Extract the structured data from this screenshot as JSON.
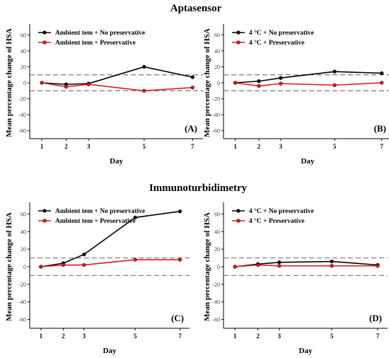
{
  "titles": [
    "Aptasensor",
    "Immunoturbidimetry"
  ],
  "colors": {
    "no_preservative": "#000000",
    "preservative": "#dd1a1a",
    "reference_line": "#777777"
  },
  "chart_data": [
    {
      "type": "line",
      "panel": "(A)",
      "xlabel": "Day",
      "ylabel": "Mean percentage change of HSA",
      "x": [
        1,
        2,
        3,
        5,
        7
      ],
      "xticks": [
        "1",
        "2",
        "3",
        "5",
        "7"
      ],
      "ylim": [
        -70,
        70
      ],
      "yticks": [
        "60",
        "40",
        "20",
        "0",
        "-20",
        "-40",
        "-60"
      ],
      "reference_lines": [
        10,
        -10
      ],
      "legend_position": "top-left",
      "series": [
        {
          "name": "Ambient tem + No preservative",
          "values": [
            0,
            -2,
            -1,
            20,
            7
          ]
        },
        {
          "name": "Ambient tem + Preservative",
          "values": [
            0,
            -5,
            -2,
            -10,
            -6
          ]
        }
      ]
    },
    {
      "type": "line",
      "panel": "(B)",
      "xlabel": "Day",
      "ylabel": "Mean percentage change of HSA",
      "x": [
        1,
        2,
        3,
        5,
        7
      ],
      "xticks": [
        "1",
        "2",
        "3",
        "5",
        "7"
      ],
      "ylim": [
        -70,
        70
      ],
      "yticks": [
        "60",
        "40",
        "20",
        "0",
        "-20",
        "-40",
        "-60"
      ],
      "reference_lines": [
        10,
        -10
      ],
      "legend_position": "top-left",
      "series": [
        {
          "name": "4 °C + No preservative",
          "values": [
            0,
            2,
            6,
            14,
            12
          ]
        },
        {
          "name": "4 °C + Preservative",
          "values": [
            0,
            -4,
            -1,
            -3,
            0
          ]
        }
      ]
    },
    {
      "type": "line",
      "panel": "(C)",
      "xlabel": "Day",
      "ylabel": "Mean percentage change of HSA",
      "x": [
        1,
        2,
        3,
        5,
        7
      ],
      "xticks": [
        "1",
        "2",
        "3",
        "5",
        "7"
      ],
      "ylim": [
        -70,
        70
      ],
      "yticks": [
        "60",
        "40",
        "20",
        "0",
        "-20",
        "-40",
        "-60"
      ],
      "reference_lines": [
        10,
        -10
      ],
      "legend_position": "top-left",
      "series": [
        {
          "name": "Ambient tem + No preservative",
          "values": [
            0,
            4,
            14,
            56,
            63
          ]
        },
        {
          "name": "Ambient tem + Preservative",
          "values": [
            0,
            2,
            2,
            8,
            8
          ]
        }
      ]
    },
    {
      "type": "line",
      "panel": "(D)",
      "xlabel": "Day",
      "ylabel": "Mean percentage change of HSA",
      "x": [
        1,
        2,
        3,
        5,
        7
      ],
      "xticks": [
        "1",
        "2",
        "3",
        "5",
        "7"
      ],
      "ylim": [
        -70,
        70
      ],
      "yticks": [
        "60",
        "40",
        "20",
        "0",
        "-20",
        "-40",
        "-60"
      ],
      "reference_lines": [
        10,
        -10
      ],
      "legend_position": "top-left",
      "series": [
        {
          "name": "4 °C + No preservative",
          "values": [
            0,
            3,
            5,
            6,
            2
          ]
        },
        {
          "name": "4 °C + Preservative",
          "values": [
            0,
            2,
            1,
            1,
            1
          ]
        }
      ]
    }
  ]
}
